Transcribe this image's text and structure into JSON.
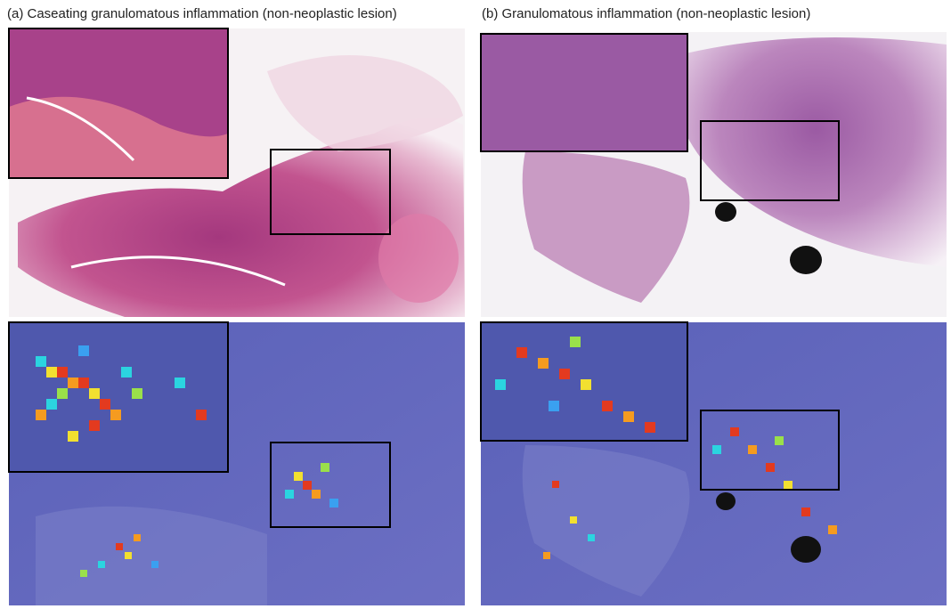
{
  "panels": [
    {
      "title": "(a) Caseating granulomatous inflammation (non-neoplastic lesion)"
    },
    {
      "title": "(b) Granulomatous inflammation (non-neoplastic lesion)"
    }
  ]
}
